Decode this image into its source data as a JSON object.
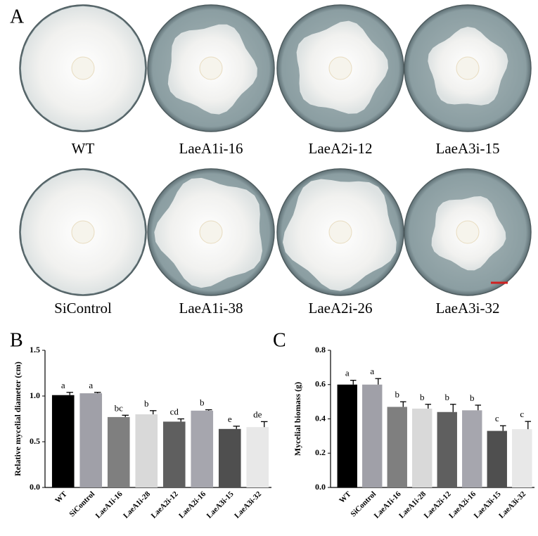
{
  "panel_a": {
    "label": "A",
    "plates": [
      "WT",
      "LaeA1i-16",
      "LaeA2i-12",
      "LaeA3i-15",
      "SiControl",
      "LaeA1i-38",
      "LaeA2i-26",
      "LaeA3i-32"
    ]
  },
  "chart_data": [
    {
      "type": "bar",
      "panel_label": "B",
      "y_label": "Relative mycelial diameter (cm)",
      "categories": [
        "WT",
        "SiControl",
        "LaeA1i-16",
        "LaeA1i-28",
        "LaeA2i-12",
        "LaeA2i-16",
        "LaeA3i-15",
        "LaeA3i-32"
      ],
      "values": [
        1.01,
        1.03,
        0.77,
        0.8,
        0.72,
        0.84,
        0.64,
        0.66
      ],
      "errors": [
        0.03,
        0.01,
        0.02,
        0.04,
        0.03,
        0.01,
        0.03,
        0.06
      ],
      "significance": [
        "a",
        "a",
        "bc",
        "b",
        "cd",
        "b",
        "e",
        "de"
      ],
      "colors": [
        "#000000",
        "#a0a0a8",
        "#7f7f7f",
        "#d9d9d9",
        "#5f5f5f",
        "#a6a6ae",
        "#4f4f4f",
        "#e8e8e8"
      ],
      "ylim": [
        0,
        1.5
      ],
      "yticks": [
        {
          "value": 0,
          "label": "0.0"
        },
        0.5,
        {
          "value": 1,
          "label": "1.0"
        },
        1.5
      ]
    },
    {
      "type": "bar",
      "panel_label": "C",
      "y_label": "Mycelial biomass (g)",
      "categories": [
        "WT",
        "SiControl",
        "LaeA1i-16",
        "LaeA1i-28",
        "LaeA2i-12",
        "LaeA2i-16",
        "LaeA3i-15",
        "LaeA3i-32"
      ],
      "values": [
        0.6,
        0.6,
        0.47,
        0.46,
        0.44,
        0.45,
        0.33,
        0.34
      ],
      "errors": [
        0.025,
        0.035,
        0.03,
        0.025,
        0.045,
        0.03,
        0.03,
        0.045
      ],
      "significance": [
        "a",
        "a",
        "b",
        "b",
        "b",
        "b",
        "c",
        "c"
      ],
      "colors": [
        "#000000",
        "#a0a0a8",
        "#7f7f7f",
        "#d9d9d9",
        "#5f5f5f",
        "#a6a6ae",
        "#4f4f4f",
        "#e8e8e8"
      ],
      "ylim": [
        0,
        0.8
      ],
      "yticks": [
        {
          "value": 0,
          "label": "0.0"
        },
        0.2,
        0.4,
        0.6,
        0.8
      ]
    }
  ]
}
